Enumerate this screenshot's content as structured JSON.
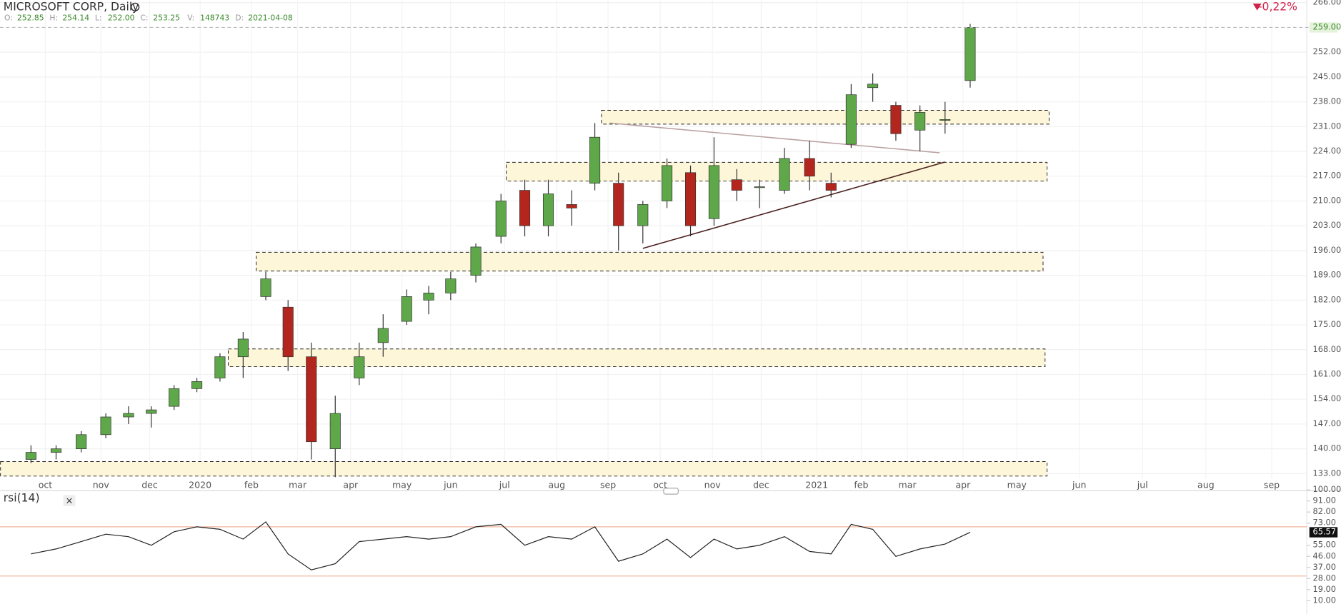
{
  "header": {
    "fields": [
      {
        "key": "O:",
        "value": "252.85"
      },
      {
        "key": "H:",
        "value": "254.14"
      },
      {
        "key": "L:",
        "value": "252.00"
      },
      {
        "key": "C:",
        "value": "253.25"
      },
      {
        "key": "V:",
        "value": "148743"
      },
      {
        "key": "D:",
        "value": "2021-04-08"
      }
    ],
    "change": "-0,22%"
  },
  "chart_data": [
    {
      "type": "candlestick",
      "title": "MICROSOFT CORP, Daily",
      "x": [
        "2019-09-23",
        "2019-10-07",
        "2019-10-21",
        "2019-11-04",
        "2019-11-18",
        "2019-12-02",
        "2019-12-16",
        "2019-12-30",
        "2020-01-13",
        "2020-01-27",
        "2020-02-10",
        "2020-02-24",
        "2020-03-09",
        "2020-03-23",
        "2020-04-06",
        "2020-04-20",
        "2020-05-04",
        "2020-05-18",
        "2020-06-01",
        "2020-06-15",
        "2020-06-29",
        "2020-07-13",
        "2020-07-27",
        "2020-08-10",
        "2020-08-24",
        "2020-09-07",
        "2020-09-21",
        "2020-10-05",
        "2020-10-19",
        "2020-11-02",
        "2020-11-16",
        "2020-11-30",
        "2020-12-14",
        "2020-12-28",
        "2021-01-11",
        "2021-01-25",
        "2021-02-08",
        "2021-02-22",
        "2021-03-08",
        "2021-03-22",
        "2021-04-05"
      ],
      "open": [
        137,
        139,
        140,
        144,
        149,
        150,
        152,
        157,
        160,
        166,
        183,
        180,
        166,
        140,
        160,
        170,
        176,
        182,
        184,
        189,
        200,
        213,
        203,
        209,
        215,
        215,
        203,
        210,
        218,
        205,
        216,
        214,
        213,
        222,
        215,
        226,
        242,
        237,
        230,
        233,
        244
      ],
      "high": [
        141,
        141,
        145,
        150,
        152,
        152,
        158,
        160,
        167,
        173,
        190,
        182,
        170,
        155,
        170,
        178,
        185,
        186,
        190,
        198,
        212,
        216,
        216,
        213,
        232,
        218,
        210,
        222,
        220,
        228,
        219,
        216,
        225,
        227,
        218,
        243,
        246,
        238,
        237,
        238,
        260
      ],
      "low": [
        136,
        137,
        139,
        143,
        147,
        146,
        151,
        156,
        159,
        160,
        182,
        162,
        137,
        132,
        158,
        166,
        175,
        178,
        182,
        187,
        198,
        200,
        200,
        203,
        213,
        196,
        198,
        208,
        200,
        203,
        210,
        208,
        212,
        213,
        211,
        225,
        238,
        227,
        224,
        229,
        242
      ],
      "close": [
        139,
        140,
        144,
        149,
        150,
        151,
        157,
        159,
        166,
        171,
        188,
        166,
        142,
        150,
        166,
        174,
        183,
        184,
        188,
        197,
        210,
        203,
        212,
        208,
        228,
        203,
        209,
        220,
        203,
        220,
        213,
        214,
        222,
        217,
        213,
        240,
        243,
        229,
        235,
        233,
        259
      ],
      "up_color": "#5fa84a",
      "down_color": "#b3261e",
      "ylim": [
        128.4,
        266.7
      ],
      "yticks": [
        {
          "value": 133,
          "label": "133.00"
        },
        {
          "value": 140,
          "label": "140.00"
        },
        {
          "value": 147,
          "label": "147.00"
        },
        {
          "value": 154,
          "label": "154.00"
        },
        {
          "value": 161,
          "label": "161.00"
        },
        {
          "value": 168,
          "label": "168.00"
        },
        {
          "value": 175,
          "label": "175.00"
        },
        {
          "value": 182,
          "label": "182.00"
        },
        {
          "value": 189,
          "label": "189.00"
        },
        {
          "value": 196,
          "label": "196.00"
        },
        {
          "value": 203,
          "label": "203.00"
        },
        {
          "value": 210,
          "label": "210.00"
        },
        {
          "value": 217,
          "label": "217.00"
        },
        {
          "value": 224,
          "label": "224.00"
        },
        {
          "value": 231,
          "label": "231.00"
        },
        {
          "value": 238,
          "label": "238.00"
        },
        {
          "value": 245,
          "label": "245.00"
        },
        {
          "value": 252,
          "label": "252.00"
        },
        {
          "value": 266,
          "label": "266.00"
        }
      ],
      "xticks": [
        {
          "value": "2019-10-01",
          "label": "oct"
        },
        {
          "value": "2019-11-01",
          "label": "nov"
        },
        {
          "value": "2019-12-01",
          "label": "dec"
        },
        {
          "value": "2020-01-01",
          "label": "2020"
        },
        {
          "value": "2020-02-01",
          "label": "feb"
        },
        {
          "value": "2020-03-01",
          "label": "mar"
        },
        {
          "value": "2020-04-01",
          "label": "apr"
        },
        {
          "value": "2020-05-01",
          "label": "may"
        },
        {
          "value": "2020-06-01",
          "label": "jun"
        },
        {
          "value": "2020-07-01",
          "label": "jul"
        },
        {
          "value": "2020-08-01",
          "label": "aug"
        },
        {
          "value": "2020-09-01",
          "label": "sep"
        },
        {
          "value": "2020-10-01",
          "label": "oct"
        },
        {
          "value": "2020-11-01",
          "label": "nov"
        },
        {
          "value": "2020-12-01",
          "label": "dec"
        },
        {
          "value": "2021-01-01",
          "label": "2021"
        },
        {
          "value": "2021-02-01",
          "label": "feb"
        },
        {
          "value": "2021-03-01",
          "label": "mar"
        },
        {
          "value": "2021-04-01",
          "label": "apr"
        },
        {
          "value": "2021-05-01",
          "label": "may"
        },
        {
          "value": "2021-06-01",
          "label": "jun"
        },
        {
          "value": "2021-07-01",
          "label": "jul"
        },
        {
          "value": "2021-08-01",
          "label": "aug"
        },
        {
          "value": "2021-09-01",
          "label": "sep"
        }
      ],
      "last_price": {
        "value": 259,
        "label": "259.00"
      },
      "grid": true,
      "zones": [
        {
          "start": "2020-08-28",
          "end": "2021-05-17",
          "from": 231.7,
          "to": 235.6
        },
        {
          "start": "2020-07-02",
          "end": "2021-05-16",
          "from": 215.6,
          "to": 220.9
        },
        {
          "start": "2020-02-04",
          "end": "2021-05-14",
          "from": 190.2,
          "to": 195.5
        },
        {
          "start": "2020-01-18",
          "end": "2021-05-15",
          "from": 163.2,
          "to": 168.2
        },
        {
          "start": "2019-09-06",
          "end": "2021-05-16",
          "from": 132.3,
          "to": 136.4
        }
      ],
      "zone_color": "#fdf6d8",
      "trend_lines": [
        {
          "start": "2020-09-02",
          "end": "2021-03-19",
          "from": 232,
          "to": 223.6,
          "color": "#b9a0a0"
        },
        {
          "start": "2020-09-21",
          "end": "2021-03-22",
          "from": 196.6,
          "to": 221,
          "color": "#4a1f1f"
        }
      ]
    },
    {
      "type": "line",
      "title": "rsi(14)",
      "x": [
        "2019-09-23",
        "2019-10-07",
        "2019-10-21",
        "2019-11-04",
        "2019-11-18",
        "2019-12-02",
        "2019-12-16",
        "2019-12-30",
        "2020-01-13",
        "2020-01-27",
        "2020-02-10",
        "2020-02-24",
        "2020-03-09",
        "2020-03-23",
        "2020-04-06",
        "2020-04-20",
        "2020-05-04",
        "2020-05-18",
        "2020-06-01",
        "2020-06-15",
        "2020-06-29",
        "2020-07-13",
        "2020-07-27",
        "2020-08-10",
        "2020-08-24",
        "2020-09-07",
        "2020-09-21",
        "2020-10-05",
        "2020-10-19",
        "2020-11-02",
        "2020-11-16",
        "2020-11-30",
        "2020-12-14",
        "2020-12-28",
        "2021-01-11",
        "2021-01-25",
        "2021-02-08",
        "2021-02-22",
        "2021-03-08",
        "2021-03-22",
        "2021-04-05"
      ],
      "values": [
        48,
        52,
        58,
        64,
        62,
        55,
        66,
        70,
        68,
        60,
        74,
        48,
        35,
        40,
        58,
        60,
        62,
        60,
        62,
        70,
        72,
        55,
        62,
        60,
        70,
        42,
        48,
        60,
        45,
        60,
        52,
        55,
        62,
        50,
        48,
        72,
        68,
        46,
        52,
        56,
        65.57
      ],
      "color": "#222222",
      "ylim": [
        0,
        100
      ],
      "yticks": [
        {
          "value": 100,
          "label": "100.00"
        },
        {
          "value": 91,
          "label": "91.00"
        },
        {
          "value": 82,
          "label": "82.00"
        },
        {
          "value": 73,
          "label": "73.00"
        },
        {
          "value": 55,
          "label": "55.00"
        },
        {
          "value": 46,
          "label": "46.00"
        },
        {
          "value": 37,
          "label": "37.00"
        },
        {
          "value": 28,
          "label": "28.00"
        },
        {
          "value": 19,
          "label": "19.00"
        },
        {
          "value": 10,
          "label": "10.00"
        }
      ],
      "levels": [
        70,
        30
      ],
      "level_color": "#f0b49a",
      "last_value": 65.57
    }
  ]
}
